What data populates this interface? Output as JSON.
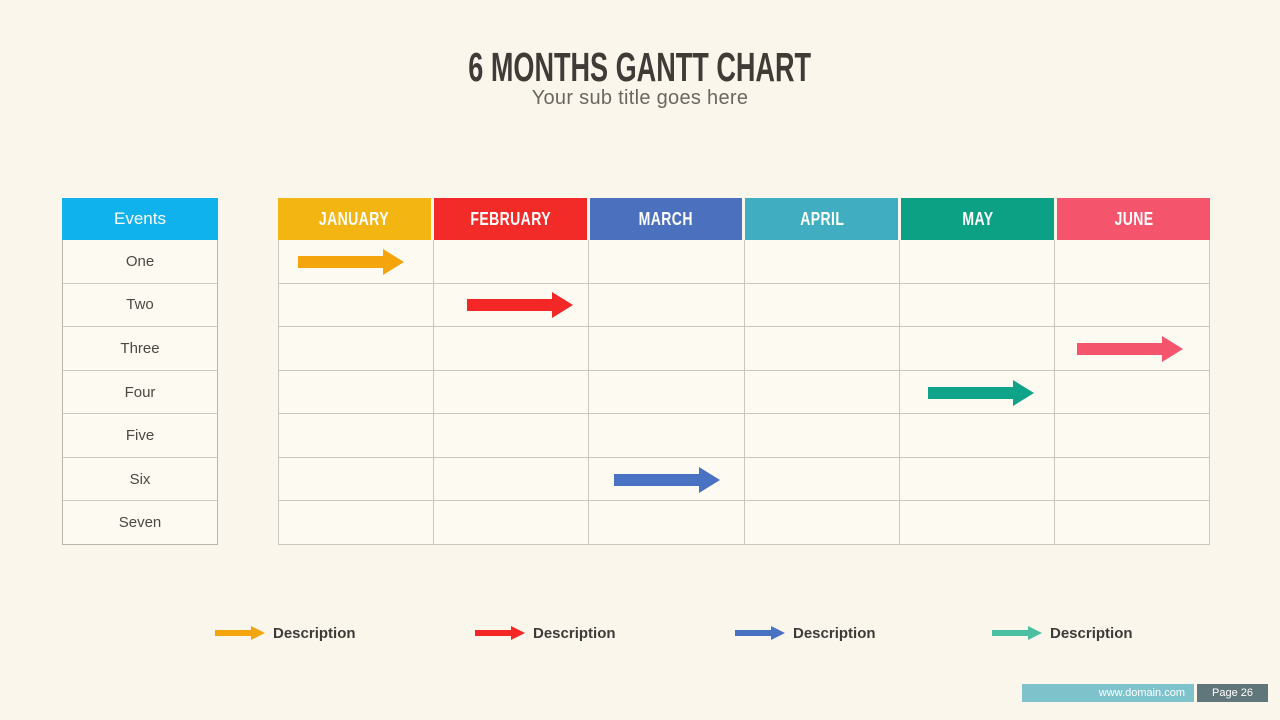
{
  "slide": {
    "title": "6 MONTHS GANTT CHART",
    "subtitle": "Your sub title goes here",
    "background_color": "#FBF6EB"
  },
  "events_table": {
    "header": "Events",
    "header_color": "#10B2ED",
    "rows": [
      "One",
      "Two",
      "Three",
      "Four",
      "Five",
      "Six",
      "Seven"
    ]
  },
  "gantt": {
    "months": [
      {
        "label": "JANUARY",
        "color": "#F3B512"
      },
      {
        "label": "FEBRUARY",
        "color": "#F32B28"
      },
      {
        "label": "MARCH",
        "color": "#4A70BE"
      },
      {
        "label": "APRIL",
        "color": "#40AEC0"
      },
      {
        "label": "MAY",
        "color": "#0CA185"
      },
      {
        "label": "JUNE",
        "color": "#F4556D"
      }
    ],
    "bars": [
      {
        "event": "One",
        "month": "JANUARY",
        "row": 0,
        "col": 0,
        "offset": 20,
        "color": "#F4A50D"
      },
      {
        "event": "Two",
        "month": "FEBRUARY",
        "row": 1,
        "col": 1,
        "offset": 34,
        "color": "#F22726"
      },
      {
        "event": "Three",
        "month": "JUNE",
        "row": 2,
        "col": 5,
        "offset": 22,
        "color": "#F4556D"
      },
      {
        "event": "Four",
        "month": "MAY",
        "row": 3,
        "col": 4,
        "offset": 29,
        "color": "#0FA389"
      },
      {
        "event": "Six",
        "month": "MARCH",
        "row": 5,
        "col": 2,
        "offset": 25,
        "color": "#4A72C2"
      }
    ]
  },
  "legend": [
    {
      "label": "Description",
      "color": "#F4A50D"
    },
    {
      "label": "Description",
      "color": "#F22726"
    },
    {
      "label": "Description",
      "color": "#4A72C2"
    },
    {
      "label": "Description",
      "color": "#4ABFA2"
    }
  ],
  "footer": {
    "website": "www.domain.com",
    "page": "Page 26",
    "bar_color": "#7EC2CB",
    "badge_color": "#60767A"
  },
  "chart_data": {
    "type": "table",
    "title": "6 MONTHS GANTT CHART",
    "subtitle": "Your sub title goes here",
    "rows": [
      "One",
      "Two",
      "Three",
      "Four",
      "Five",
      "Six",
      "Seven"
    ],
    "columns": [
      "JANUARY",
      "FEBRUARY",
      "MARCH",
      "APRIL",
      "MAY",
      "JUNE"
    ],
    "bars": [
      {
        "event": "One",
        "month": "JANUARY"
      },
      {
        "event": "Two",
        "month": "FEBRUARY"
      },
      {
        "event": "Three",
        "month": "JUNE"
      },
      {
        "event": "Four",
        "month": "MAY"
      },
      {
        "event": "Six",
        "month": "MARCH"
      }
    ],
    "legend": [
      "Description",
      "Description",
      "Description",
      "Description"
    ],
    "legend_position": "bottom"
  }
}
